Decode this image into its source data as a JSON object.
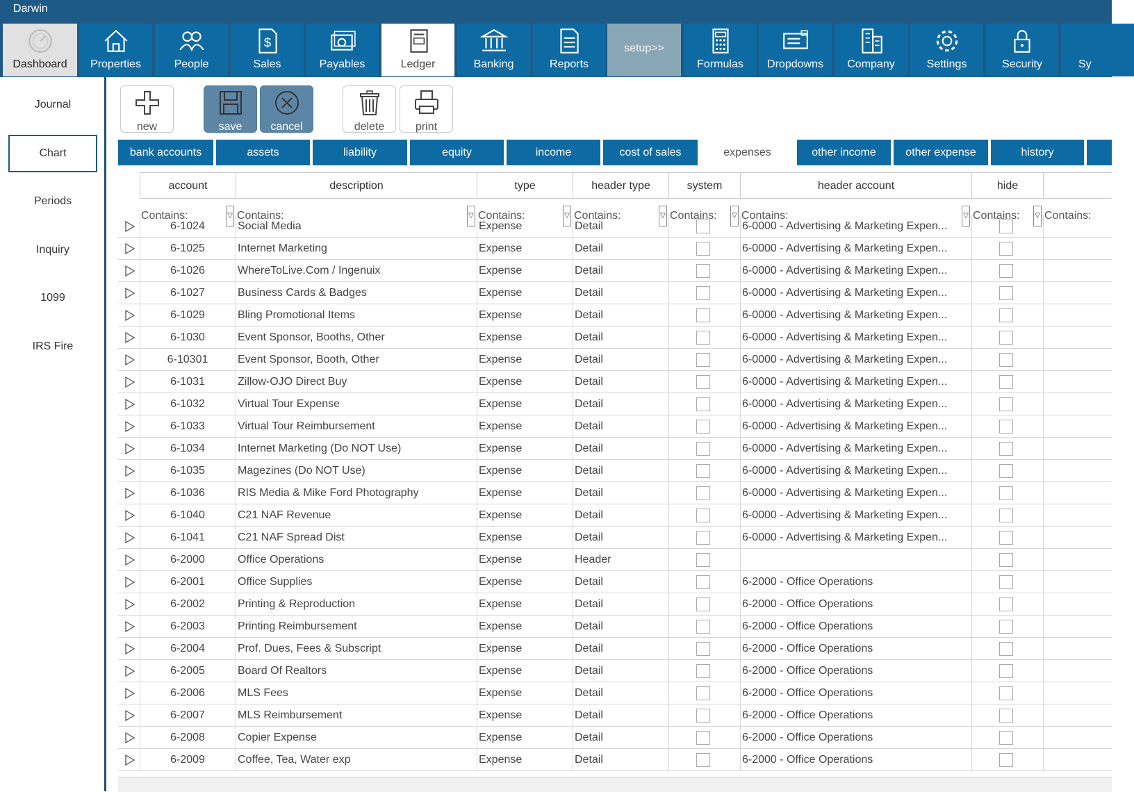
{
  "window": {
    "title": "Darwin"
  },
  "ribbon": [
    {
      "label": "Dashboard",
      "icon": "gauge-icon"
    },
    {
      "label": "Properties",
      "icon": "house-icon"
    },
    {
      "label": "People",
      "icon": "people-icon"
    },
    {
      "label": "Sales",
      "icon": "dollar-document-icon"
    },
    {
      "label": "Payables",
      "icon": "payables-icon"
    },
    {
      "label": "Ledger",
      "icon": "ledger-icon"
    },
    {
      "label": "Banking",
      "icon": "bank-icon"
    },
    {
      "label": "Reports",
      "icon": "report-icon"
    },
    {
      "label": "setup>>",
      "icon": ""
    },
    {
      "label": "Formulas",
      "icon": "calculator-icon"
    },
    {
      "label": "Dropdowns",
      "icon": "dropdown-icon"
    },
    {
      "label": "Company",
      "icon": "building-icon"
    },
    {
      "label": "Settings",
      "icon": "gear-icon"
    },
    {
      "label": "Security",
      "icon": "lock-icon"
    },
    {
      "label": "Sy",
      "icon": ""
    }
  ],
  "sidebar": [
    {
      "label": "Journal"
    },
    {
      "label": "Chart"
    },
    {
      "label": "Periods"
    },
    {
      "label": "Inquiry"
    },
    {
      "label": "1099"
    },
    {
      "label": "IRS Fire"
    }
  ],
  "toolbar": {
    "new": "new",
    "save": "save",
    "cancel": "cancel",
    "delete": "delete",
    "print": "print"
  },
  "tabs": [
    "bank accounts",
    "assets",
    "liability",
    "equity",
    "income",
    "cost of sales",
    "expenses",
    "other income",
    "other expense",
    "history"
  ],
  "active_tab": "expenses",
  "columns": [
    "account",
    "description",
    "type",
    "header type",
    "system",
    "header account",
    "hide"
  ],
  "filter_placeholder": "Contains:",
  "rows": [
    {
      "account": "6-1024",
      "description": "Social Media",
      "type": "Expense",
      "header_type": "Detail",
      "header_account": "6-0000 - Advertising & Marketing Expen..."
    },
    {
      "account": "6-1025",
      "description": "Internet Marketing",
      "type": "Expense",
      "header_type": "Detail",
      "header_account": "6-0000 - Advertising & Marketing Expen..."
    },
    {
      "account": "6-1026",
      "description": "WhereToLive.Com / Ingenuix",
      "type": "Expense",
      "header_type": "Detail",
      "header_account": "6-0000 - Advertising & Marketing Expen..."
    },
    {
      "account": "6-1027",
      "description": "Business Cards & Badges",
      "type": "Expense",
      "header_type": "Detail",
      "header_account": "6-0000 - Advertising & Marketing Expen..."
    },
    {
      "account": "6-1029",
      "description": "Bling Promotional Items",
      "type": "Expense",
      "header_type": "Detail",
      "header_account": "6-0000 - Advertising & Marketing Expen..."
    },
    {
      "account": "6-1030",
      "description": "Event Sponsor, Booths, Other",
      "type": "Expense",
      "header_type": "Detail",
      "header_account": "6-0000 - Advertising & Marketing Expen..."
    },
    {
      "account": "6-10301",
      "description": "Event Sponsor, Booth, Other",
      "type": "Expense",
      "header_type": "Detail",
      "header_account": "6-0000 - Advertising & Marketing Expen..."
    },
    {
      "account": "6-1031",
      "description": "Zillow-OJO Direct Buy",
      "type": "Expense",
      "header_type": "Detail",
      "header_account": "6-0000 - Advertising & Marketing Expen..."
    },
    {
      "account": "6-1032",
      "description": "Virtual Tour Expense",
      "type": "Expense",
      "header_type": "Detail",
      "header_account": "6-0000 - Advertising & Marketing Expen..."
    },
    {
      "account": "6-1033",
      "description": "Virtual Tour Reimbursement",
      "type": "Expense",
      "header_type": "Detail",
      "header_account": "6-0000 - Advertising & Marketing Expen..."
    },
    {
      "account": "6-1034",
      "description": "Internet Marketing (Do NOT Use)",
      "type": "Expense",
      "header_type": "Detail",
      "header_account": "6-0000 - Advertising & Marketing Expen..."
    },
    {
      "account": "6-1035",
      "description": "Magezines (Do NOT Use)",
      "type": "Expense",
      "header_type": "Detail",
      "header_account": "6-0000 - Advertising & Marketing Expen..."
    },
    {
      "account": "6-1036",
      "description": "RIS Media & Mike Ford Photography",
      "type": "Expense",
      "header_type": "Detail",
      "header_account": "6-0000 - Advertising & Marketing Expen..."
    },
    {
      "account": "6-1040",
      "description": "C21 NAF Revenue",
      "type": "Expense",
      "header_type": "Detail",
      "header_account": "6-0000 - Advertising & Marketing Expen..."
    },
    {
      "account": "6-1041",
      "description": "C21 NAF Spread Dist",
      "type": "Expense",
      "header_type": "Detail",
      "header_account": "6-0000 - Advertising & Marketing Expen..."
    },
    {
      "account": "6-2000",
      "description": "Office Operations",
      "type": "Expense",
      "header_type": "Header",
      "header_account": ""
    },
    {
      "account": "6-2001",
      "description": "Office Supplies",
      "type": "Expense",
      "header_type": "Detail",
      "header_account": "6-2000 - Office Operations"
    },
    {
      "account": "6-2002",
      "description": "Printing & Reproduction",
      "type": "Expense",
      "header_type": "Detail",
      "header_account": "6-2000 - Office Operations"
    },
    {
      "account": "6-2003",
      "description": "Printing Reimbursement",
      "type": "Expense",
      "header_type": "Detail",
      "header_account": "6-2000 - Office Operations"
    },
    {
      "account": "6-2004",
      "description": "Prof. Dues, Fees & Subscript",
      "type": "Expense",
      "header_type": "Detail",
      "header_account": "6-2000 - Office Operations"
    },
    {
      "account": "6-2005",
      "description": "Board Of Realtors",
      "type": "Expense",
      "header_type": "Detail",
      "header_account": "6-2000 - Office Operations"
    },
    {
      "account": "6-2006",
      "description": "MLS Fees",
      "type": "Expense",
      "header_type": "Detail",
      "header_account": "6-2000 - Office Operations"
    },
    {
      "account": "6-2007",
      "description": "MLS Reimbursement",
      "type": "Expense",
      "header_type": "Detail",
      "header_account": "6-2000 - Office Operations"
    },
    {
      "account": "6-2008",
      "description": "Copier Expense",
      "type": "Expense",
      "header_type": "Detail",
      "header_account": "6-2000 - Office Operations"
    },
    {
      "account": "6-2009",
      "description": "Coffee, Tea, Water exp",
      "type": "Expense",
      "header_type": "Detail",
      "header_account": "6-2000 - Office Operations"
    }
  ],
  "colors": {
    "brand": "#1d5a86",
    "tile": "#0e6aa3",
    "setup": "#8aa7b8",
    "toolbar_active": "#5d86a6"
  }
}
